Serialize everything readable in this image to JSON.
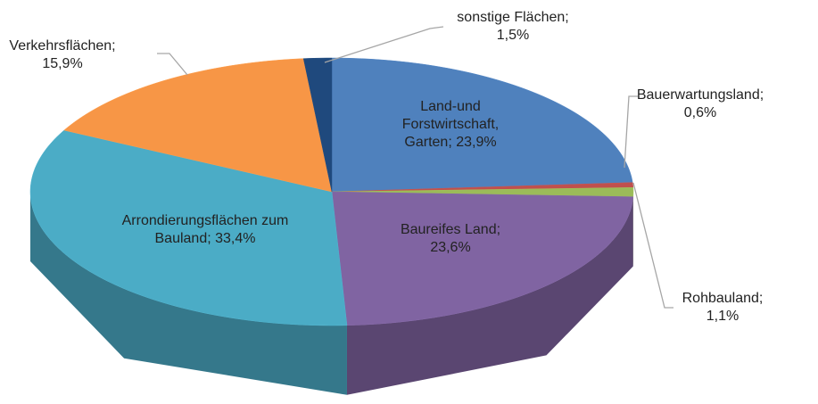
{
  "chart_data": {
    "type": "pie3d",
    "categories": [
      "Land-und Forstwirtschaft, Garten;",
      "Bauerwartungsland;",
      "Rohbauland;",
      "Baureifes Land;",
      "Arrondierungsflächen zum Bauland;",
      "Verkehrsflächen;",
      "sonstige Flächen;"
    ],
    "values": [
      23.9,
      0.6,
      1.1,
      23.6,
      33.4,
      15.9,
      1.5
    ],
    "value_labels": [
      "23,9%",
      "0,6%",
      "1,1%",
      "23,6%",
      "33,4%",
      "15,9%",
      "1,5%"
    ],
    "colors": [
      "#4f81bd",
      "#c0504d",
      "#9bbb59",
      "#8064a2",
      "#4bacc6",
      "#f79646",
      "#1f497d"
    ]
  }
}
